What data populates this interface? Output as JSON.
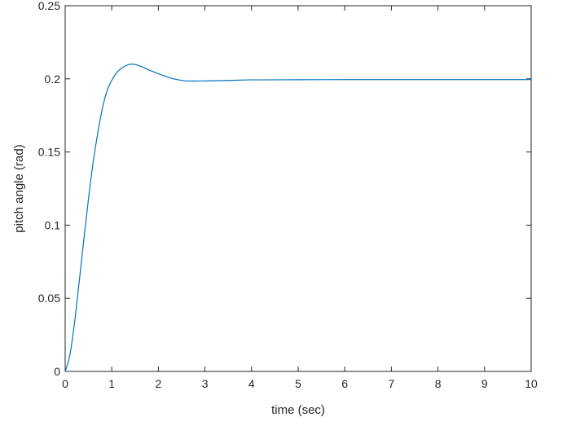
{
  "chart_data": {
    "type": "line",
    "title": "",
    "xlabel": "time (sec)",
    "ylabel": "pitch angle (rad)",
    "xlim": [
      0,
      10
    ],
    "ylim": [
      0,
      0.25
    ],
    "xticks": [
      0,
      1,
      2,
      3,
      4,
      5,
      6,
      7,
      8,
      9,
      10
    ],
    "yticks": [
      0,
      0.05,
      0.1,
      0.15,
      0.2,
      0.25
    ],
    "xtick_labels": [
      "0",
      "1",
      "2",
      "3",
      "4",
      "5",
      "6",
      "7",
      "8",
      "9",
      "10"
    ],
    "ytick_labels": [
      "0",
      "0.05",
      "0.1",
      "0.15",
      "0.2",
      "0.25"
    ],
    "grid": false,
    "box": true,
    "series": [
      {
        "color": "#0072bd",
        "x": [
          0,
          0.1,
          0.2,
          0.3,
          0.4,
          0.5,
          0.6,
          0.7,
          0.8,
          0.9,
          1.0,
          1.1,
          1.2,
          1.3,
          1.4,
          1.5,
          1.6,
          1.7,
          1.8,
          1.9,
          2.0,
          2.2,
          2.4,
          2.6,
          2.8,
          3.0,
          3.5,
          4.0,
          5.0,
          6.0,
          7.0,
          8.0,
          9.0,
          10.0
        ],
        "y": [
          0,
          0.011,
          0.033,
          0.061,
          0.09,
          0.118,
          0.143,
          0.163,
          0.18,
          0.192,
          0.199,
          0.204,
          0.207,
          0.209,
          0.21,
          0.2098,
          0.2088,
          0.2075,
          0.206,
          0.2048,
          0.2035,
          0.2012,
          0.1995,
          0.1986,
          0.1985,
          0.1986,
          0.1989,
          0.1993,
          0.1994,
          0.1995,
          0.1995,
          0.1995,
          0.1995,
          0.1995
        ]
      }
    ]
  }
}
